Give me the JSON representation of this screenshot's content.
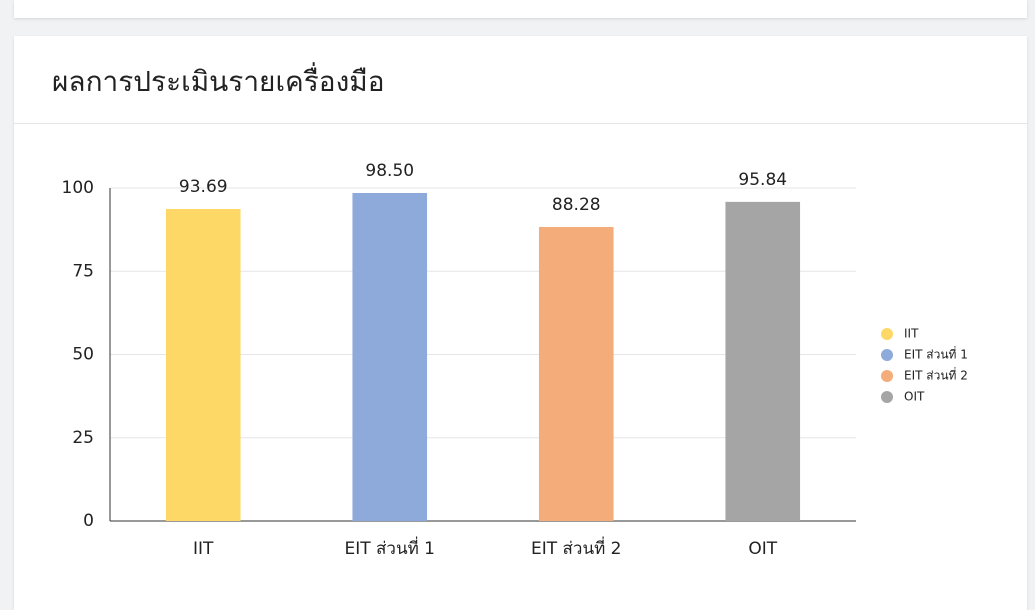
{
  "chart_data": {
    "type": "bar",
    "title": "ผลการประเมินรายเครื่องมือ",
    "categories": [
      "IIT",
      "EIT ส่วนที่ 1",
      "EIT ส่วนที่ 2",
      "OIT"
    ],
    "values": [
      93.69,
      98.5,
      88.28,
      95.84
    ],
    "value_labels": [
      "93.69",
      "98.50",
      "88.28",
      "95.84"
    ],
    "colors": [
      "#fdd866",
      "#8eaadb",
      "#f4ac7a",
      "#a5a5a5"
    ],
    "ylim": [
      0,
      100
    ],
    "yticks": [
      0,
      25,
      50,
      75,
      100
    ],
    "grid": true,
    "legend": "right"
  }
}
